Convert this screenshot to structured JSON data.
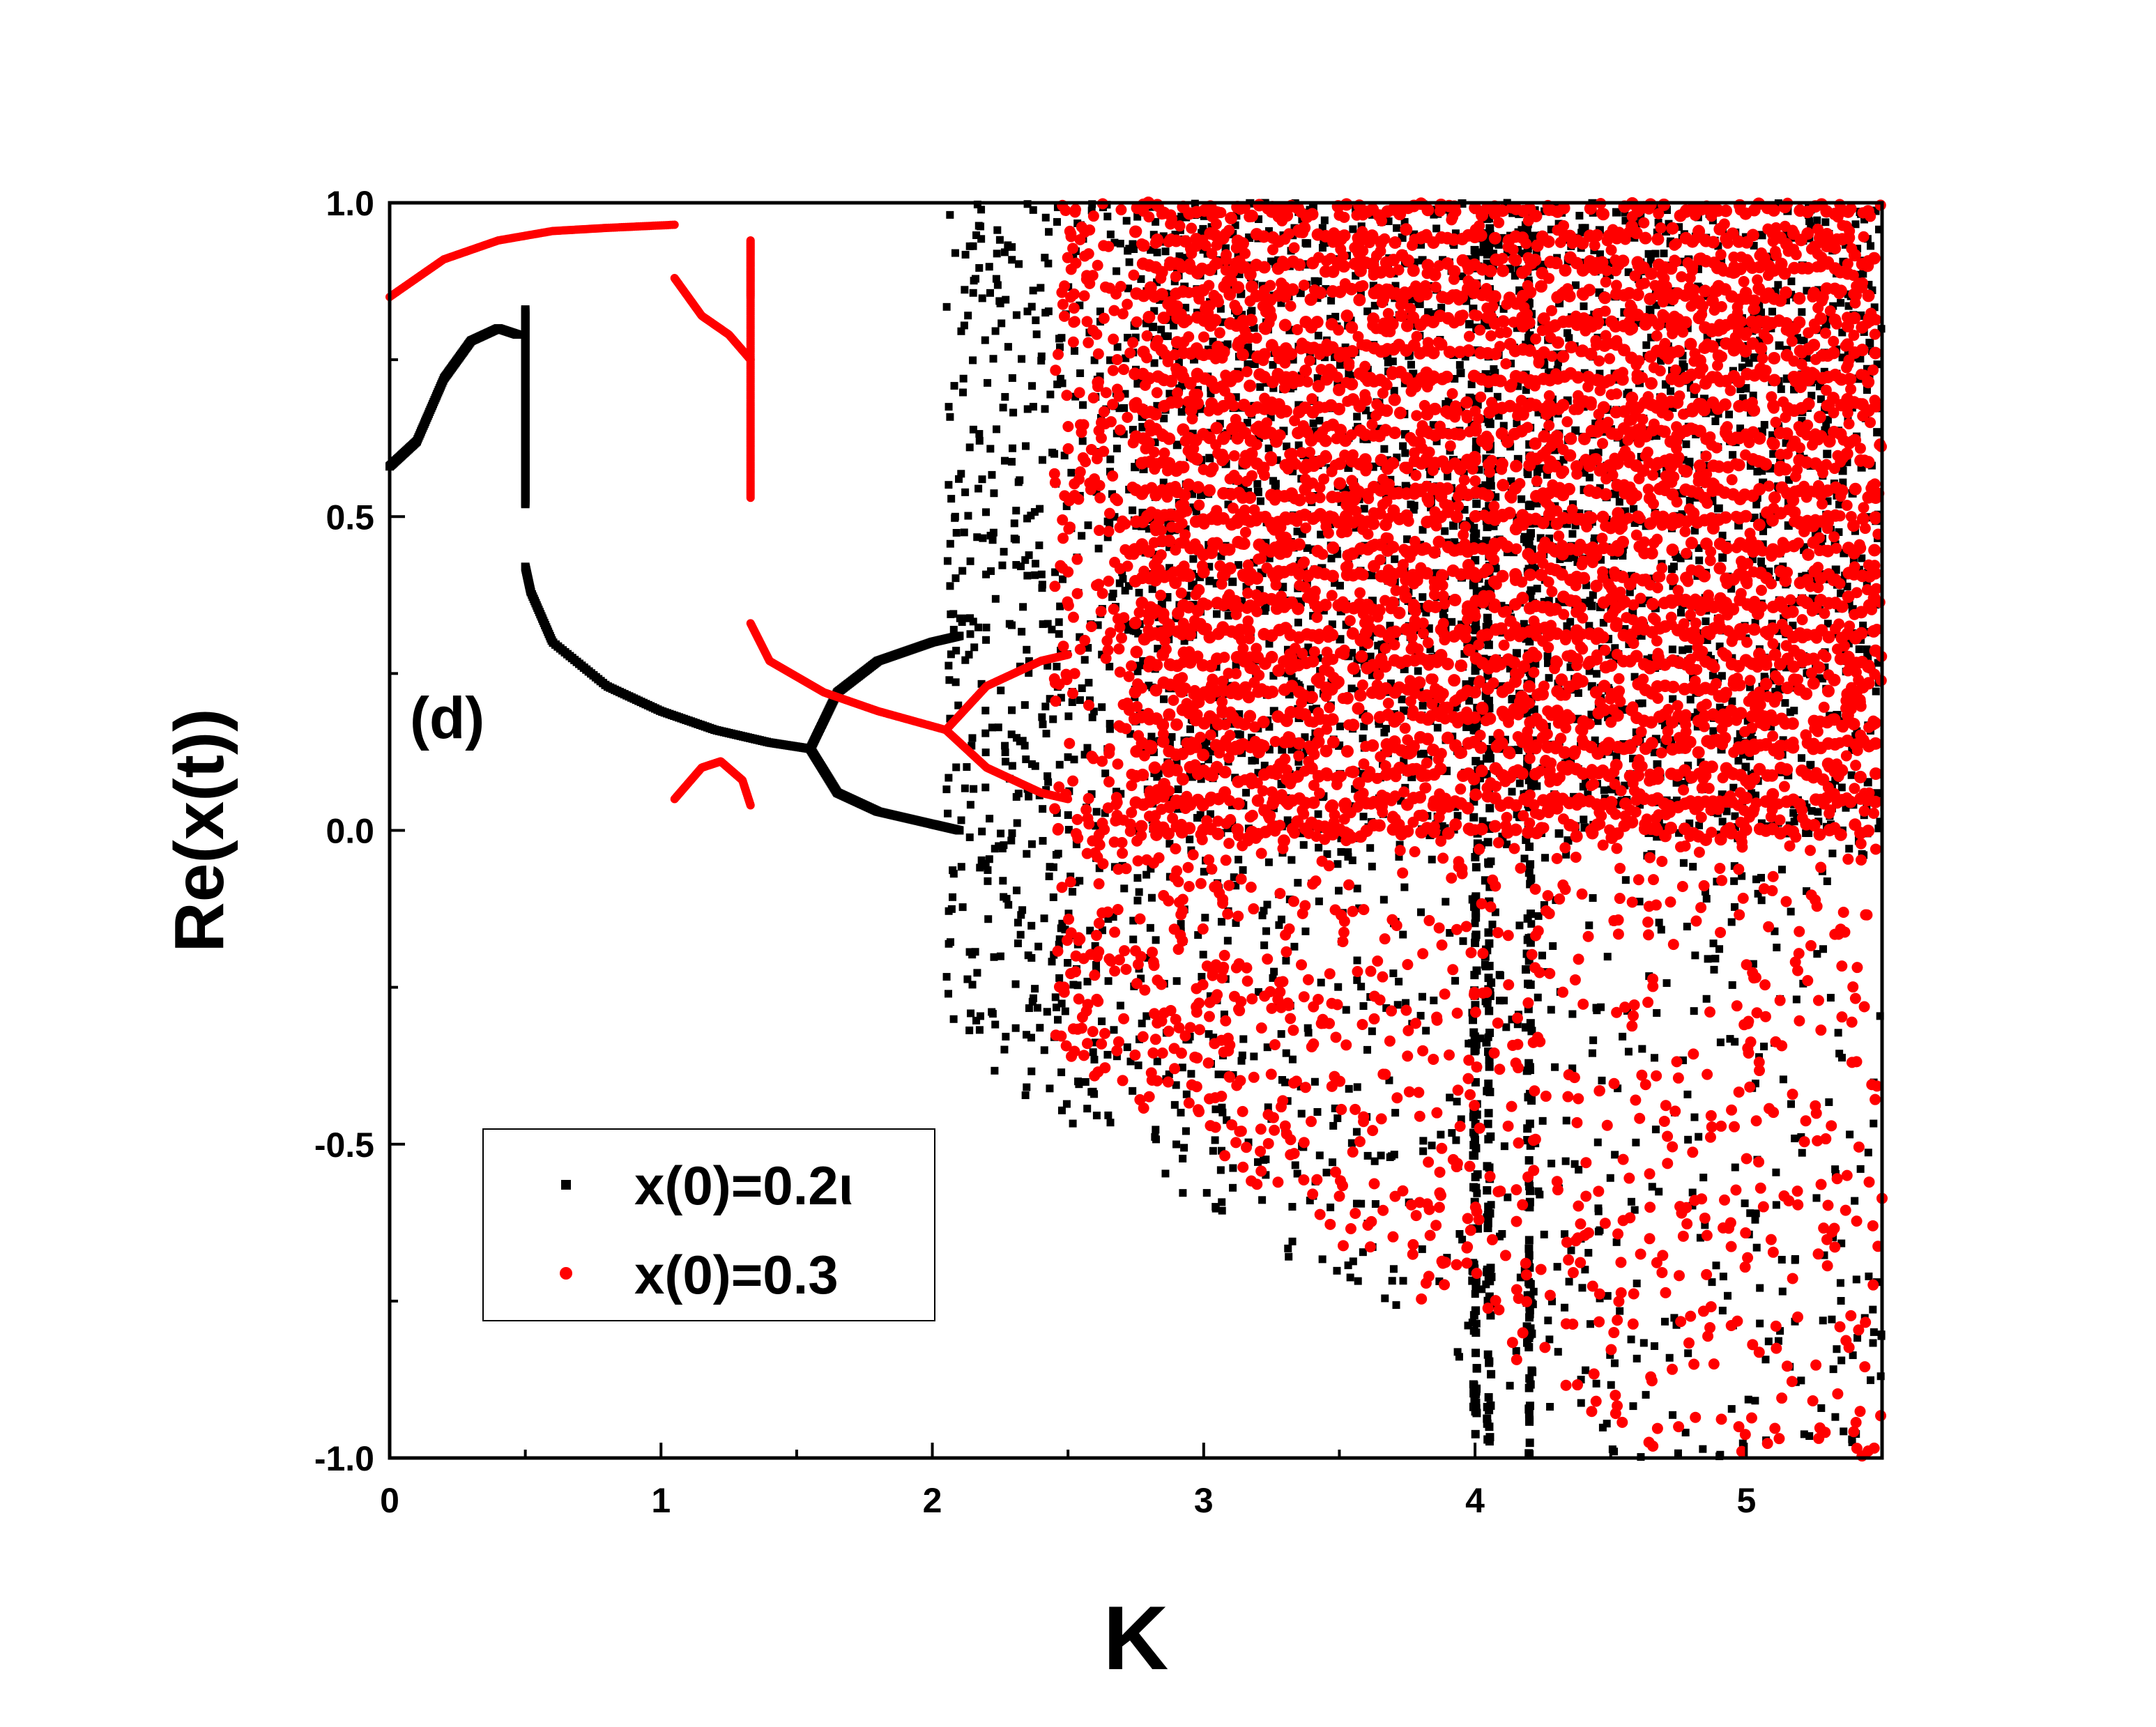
{
  "chart_data": {
    "type": "scatter",
    "title": "",
    "panel_label": "(d)",
    "xlabel": "K",
    "ylabel": "Re(x(t))",
    "xlim": [
      0,
      5.5
    ],
    "ylim": [
      -1.0,
      1.0
    ],
    "xticks": [
      "0",
      "1",
      "2",
      "3",
      "4",
      "5"
    ],
    "yticks": [
      "-1.0",
      "-0.5",
      "0.0",
      "0.5",
      "1.0"
    ],
    "grid": false,
    "legend_position": "bottom-left",
    "series": [
      {
        "name": "x(0)=0.2ι",
        "marker": "square",
        "color": "#000000",
        "branches": [
          {
            "x": [
              0.0,
              0.1,
              0.2,
              0.3,
              0.4,
              0.47
            ],
            "y": [
              0.58,
              0.62,
              0.72,
              0.78,
              0.8,
              0.79
            ]
          },
          {
            "x": [
              0.5,
              0.5,
              0.5,
              0.5
            ],
            "y": [
              0.83,
              0.7,
              0.6,
              0.52
            ]
          },
          {
            "x": [
              0.5,
              0.52,
              0.6,
              0.8,
              1.0,
              1.2,
              1.4,
              1.55
            ],
            "y": [
              0.42,
              0.38,
              0.3,
              0.23,
              0.19,
              0.16,
              0.14,
              0.13
            ]
          },
          {
            "x": [
              1.55,
              1.65,
              1.8,
              2.0,
              2.1
            ],
            "y": [
              0.13,
              0.22,
              0.27,
              0.3,
              0.31
            ]
          },
          {
            "x": [
              1.55,
              1.65,
              1.8,
              2.0,
              2.1
            ],
            "y": [
              0.13,
              0.06,
              0.03,
              0.01,
              0.0
            ]
          }
        ],
        "chaotic_region": {
          "x_range": [
            2.05,
            5.5
          ],
          "y_range": [
            -1.0,
            1.0
          ],
          "dense_band": [
            0.0,
            1.0
          ],
          "bright_bands_x": [
            4.0,
            4.05,
            4.2
          ]
        }
      },
      {
        "name": "x(0)=0.3",
        "marker": "circle",
        "color": "#ff0000",
        "branches": [
          {
            "x": [
              0.0,
              0.2,
              0.4,
              0.6,
              0.8,
              1.05
            ],
            "y": [
              0.85,
              0.91,
              0.94,
              0.955,
              0.96,
              0.965
            ]
          },
          {
            "x": [
              1.05,
              1.15,
              1.25,
              1.33
            ],
            "y": [
              0.88,
              0.82,
              0.79,
              0.75
            ]
          },
          {
            "x": [
              1.05,
              1.15,
              1.22,
              1.3,
              1.33
            ],
            "y": [
              0.05,
              0.1,
              0.11,
              0.08,
              0.04
            ]
          },
          {
            "x": [
              1.33,
              1.33,
              1.33,
              1.33
            ],
            "y": [
              0.94,
              0.85,
              0.68,
              0.53
            ]
          },
          {
            "x": [
              1.33,
              1.4,
              1.6,
              1.8,
              2.05
            ],
            "y": [
              0.33,
              0.27,
              0.22,
              0.19,
              0.16
            ]
          },
          {
            "x": [
              2.05,
              2.2,
              2.4,
              2.5
            ],
            "y": [
              0.16,
              0.23,
              0.27,
              0.28
            ]
          },
          {
            "x": [
              2.05,
              2.2,
              2.4,
              2.5
            ],
            "y": [
              0.16,
              0.1,
              0.06,
              0.05
            ]
          }
        ],
        "chaotic_region": {
          "x_range": [
            2.45,
            5.5
          ],
          "y_range": [
            -1.0,
            1.0
          ],
          "dense_band": [
            0.0,
            1.0
          ]
        }
      }
    ]
  }
}
